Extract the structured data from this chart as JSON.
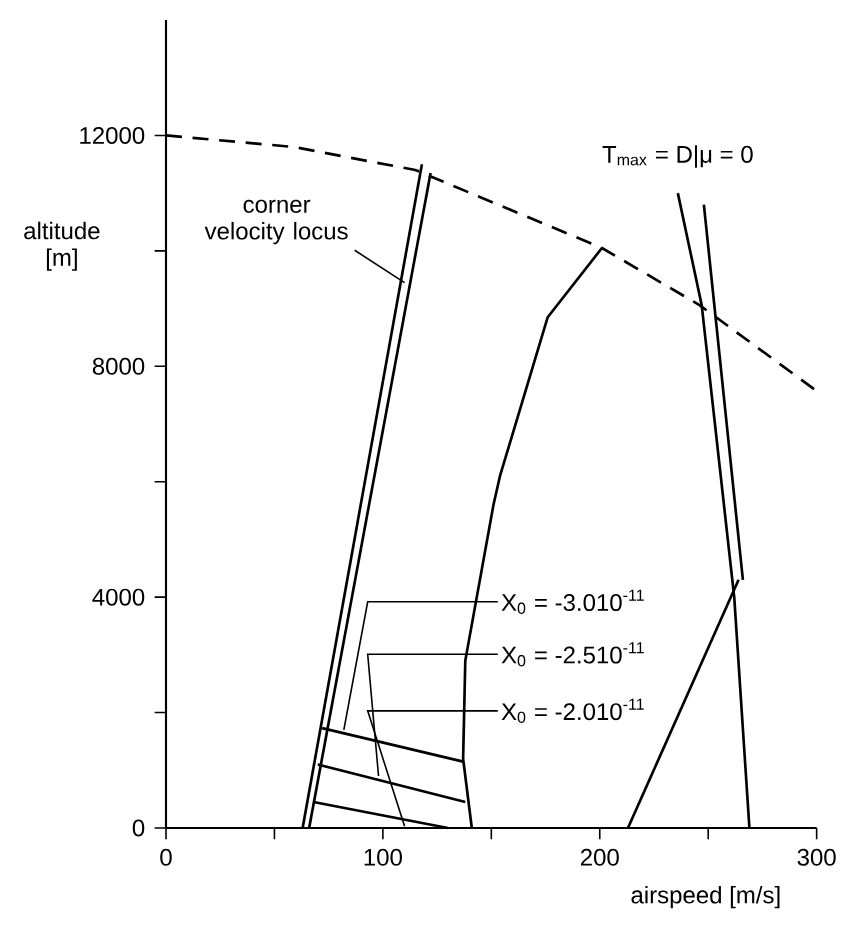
{
  "chart_data": {
    "type": "line",
    "xlabel": "airspeed [m/s]",
    "ylabel": "altitude [m]",
    "xlim": [
      0,
      300
    ],
    "ylim": [
      0,
      14000
    ],
    "xticks": [
      0,
      100,
      200,
      300,
      {
        "value": 50,
        "label": null
      },
      {
        "value": 150,
        "label": null
      },
      {
        "value": 250,
        "label": null
      }
    ],
    "yticks": [
      0,
      4000,
      8000,
      12000,
      {
        "value": 2000,
        "label": null
      },
      {
        "value": 6000,
        "label": null
      },
      {
        "value": 10000,
        "label": null
      }
    ],
    "grid": false,
    "series": [
      {
        "line_style": "dashed",
        "color": "#000000",
        "x": [
          0,
          59,
          115,
          201,
          246,
          299
        ],
        "values": [
          12000,
          11800,
          11400,
          10050,
          9060,
          7600
        ]
      },
      {
        "color": "#000000",
        "x": [
          63,
          118
        ],
        "values": [
          0,
          11500
        ]
      },
      {
        "color": "#000000",
        "x": [
          66,
          122
        ],
        "values": [
          0,
          11350
        ]
      },
      {
        "color": "#000000",
        "x": [
          236,
          247,
          262,
          269
        ],
        "values": [
          11000,
          9060,
          4000,
          0
        ]
      },
      {
        "color": "#000000",
        "x": [
          248,
          266
        ],
        "values": [
          10800,
          4300
        ]
      },
      {
        "color": "#000000",
        "x": [
          213,
          264
        ],
        "values": [
          0,
          4300
        ]
      },
      {
        "color": "#000000",
        "x": [
          201,
          176,
          154,
          151,
          138,
          137,
          141
        ],
        "values": [
          10050,
          8850,
          6100,
          5600,
          2900,
          1200,
          0
        ]
      },
      {
        "color": "#000000",
        "x": [
          137,
          72
        ],
        "values": [
          1150,
          1730
        ]
      },
      {
        "color": "#000000",
        "x": [
          138,
          70
        ],
        "values": [
          450,
          1100
        ]
      },
      {
        "color": "#000000",
        "x": [
          130,
          68
        ],
        "values": [
          0,
          450
        ]
      }
    ],
    "annotations": [
      {
        "text": "corner velocity locus",
        "x": 110,
        "y": 9450
      },
      {
        "text": "T$_{max}$ = D|μ = 0",
        "x": 236,
        "y": 11000
      },
      {
        "text": "X$_{0}$ = -3.010$^{-11}$",
        "x": 82,
        "y": 1700
      },
      {
        "text": "X$_{0}$ = -2.510$^{-11}$",
        "x": 98,
        "y": 900
      },
      {
        "text": "X$_{0}$ = -2.010$^{-11}$",
        "x": 110,
        "y": 30
      }
    ]
  }
}
